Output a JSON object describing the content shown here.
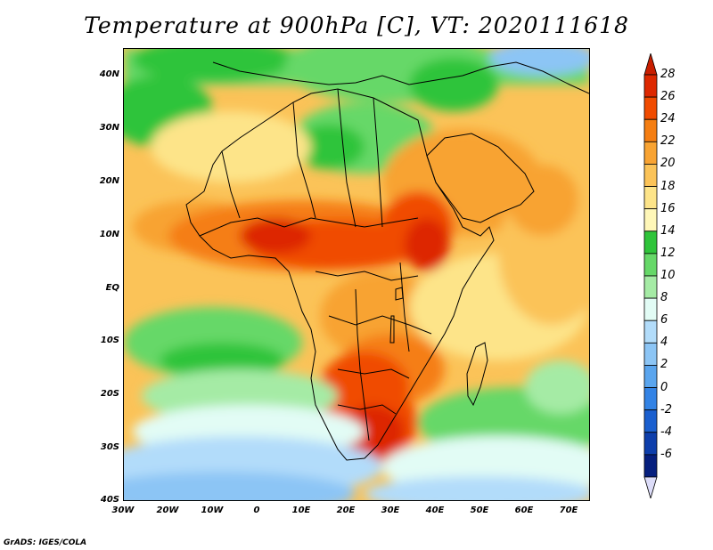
{
  "title": "Temperature at 900hPa [C], VT: 2020111618",
  "footer": "GrADS: IGES/COLA",
  "lat_labels": [
    "40N",
    "30N",
    "20N",
    "10N",
    "EQ",
    "10S",
    "20S",
    "30S",
    "40S"
  ],
  "lon_labels": [
    "30W",
    "20W",
    "10W",
    "0",
    "10E",
    "20E",
    "30E",
    "40E",
    "50E",
    "60E",
    "70E"
  ],
  "colorbar": {
    "labels": [
      "28",
      "26",
      "24",
      "22",
      "20",
      "18",
      "16",
      "14",
      "12",
      "10",
      "8",
      "6",
      "4",
      "2",
      "0",
      "-2",
      "-4",
      "-6"
    ],
    "colors": [
      "#dd2800",
      "#f04b00",
      "#f57e12",
      "#f8a332",
      "#fbc358",
      "#fde489",
      "#fff7b8",
      "#2fc43a",
      "#66d868",
      "#a5eba5",
      "#e2fcf5",
      "#b2dcfa",
      "#8cc5f5",
      "#5aa5ee",
      "#3383e5",
      "#1a5fcf",
      "#0d3eab",
      "#061f7e"
    ],
    "top_color": "#c81e00",
    "bottom_color": "#dcdcf8"
  }
}
